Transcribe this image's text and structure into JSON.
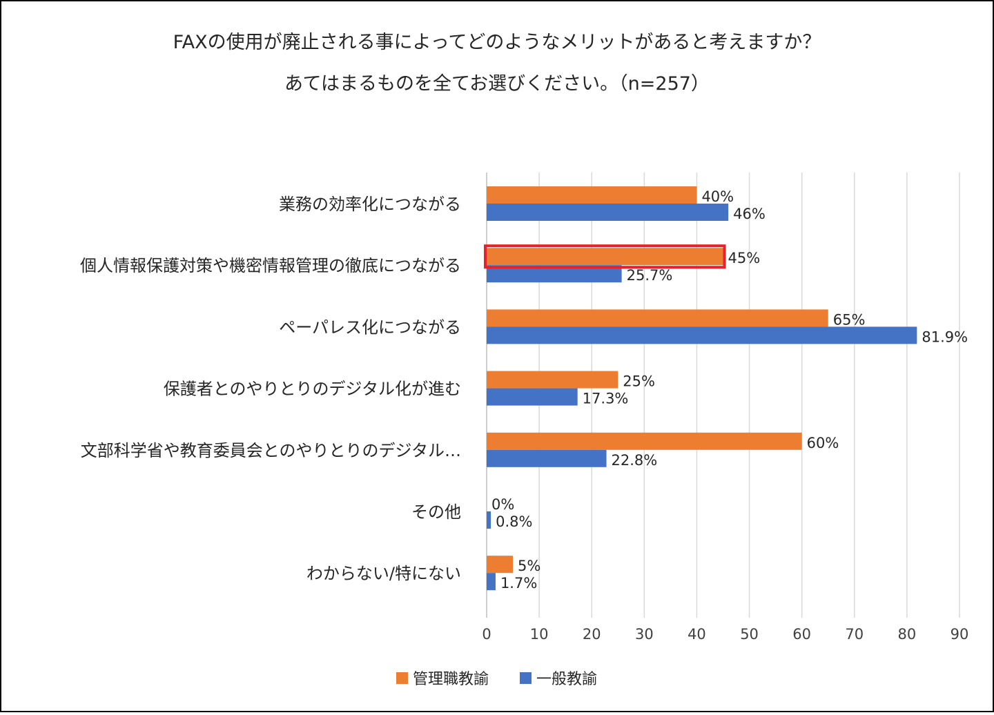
{
  "chart_data": {
    "type": "bar",
    "orientation": "horizontal",
    "title": [
      "FAXの使用が廃止される事によってどのようなメリットがあると考えますか？",
      "あてはまるものを全てお選びください。（n=257）"
    ],
    "categories": [
      "業務の効率化につながる",
      "個人情報保護対策や機密情報管理の徹底につながる",
      "ペーパレス化につながる",
      "保護者とのやりとりのデジタル化が進む",
      "文部科学省や教育委員会とのやりとりのデジタル…",
      "その他",
      "わからない/特にない"
    ],
    "series": [
      {
        "name": "管理職教諭",
        "color": "#ed7d31",
        "values": [
          40,
          45,
          65,
          25,
          60,
          0,
          5
        ],
        "labels": [
          "40%",
          "45%",
          "65%",
          "25%",
          "60%",
          "0%",
          "5%"
        ]
      },
      {
        "name": "一般教諭",
        "color": "#4472c4",
        "values": [
          46,
          25.7,
          81.9,
          17.3,
          22.8,
          0.8,
          1.7
        ],
        "labels": [
          "46%",
          "25.7%",
          "81.9%",
          "17.3%",
          "22.8%",
          "0.8%",
          "1.7%"
        ]
      }
    ],
    "xlim": [
      0,
      90
    ],
    "xticks": [
      "0",
      "10",
      "20",
      "30",
      "40",
      "50",
      "60",
      "70",
      "80",
      "90"
    ],
    "grid": true,
    "legend": "bottom",
    "highlight": {
      "series": 0,
      "category": 1,
      "color": "#e8202a"
    }
  }
}
